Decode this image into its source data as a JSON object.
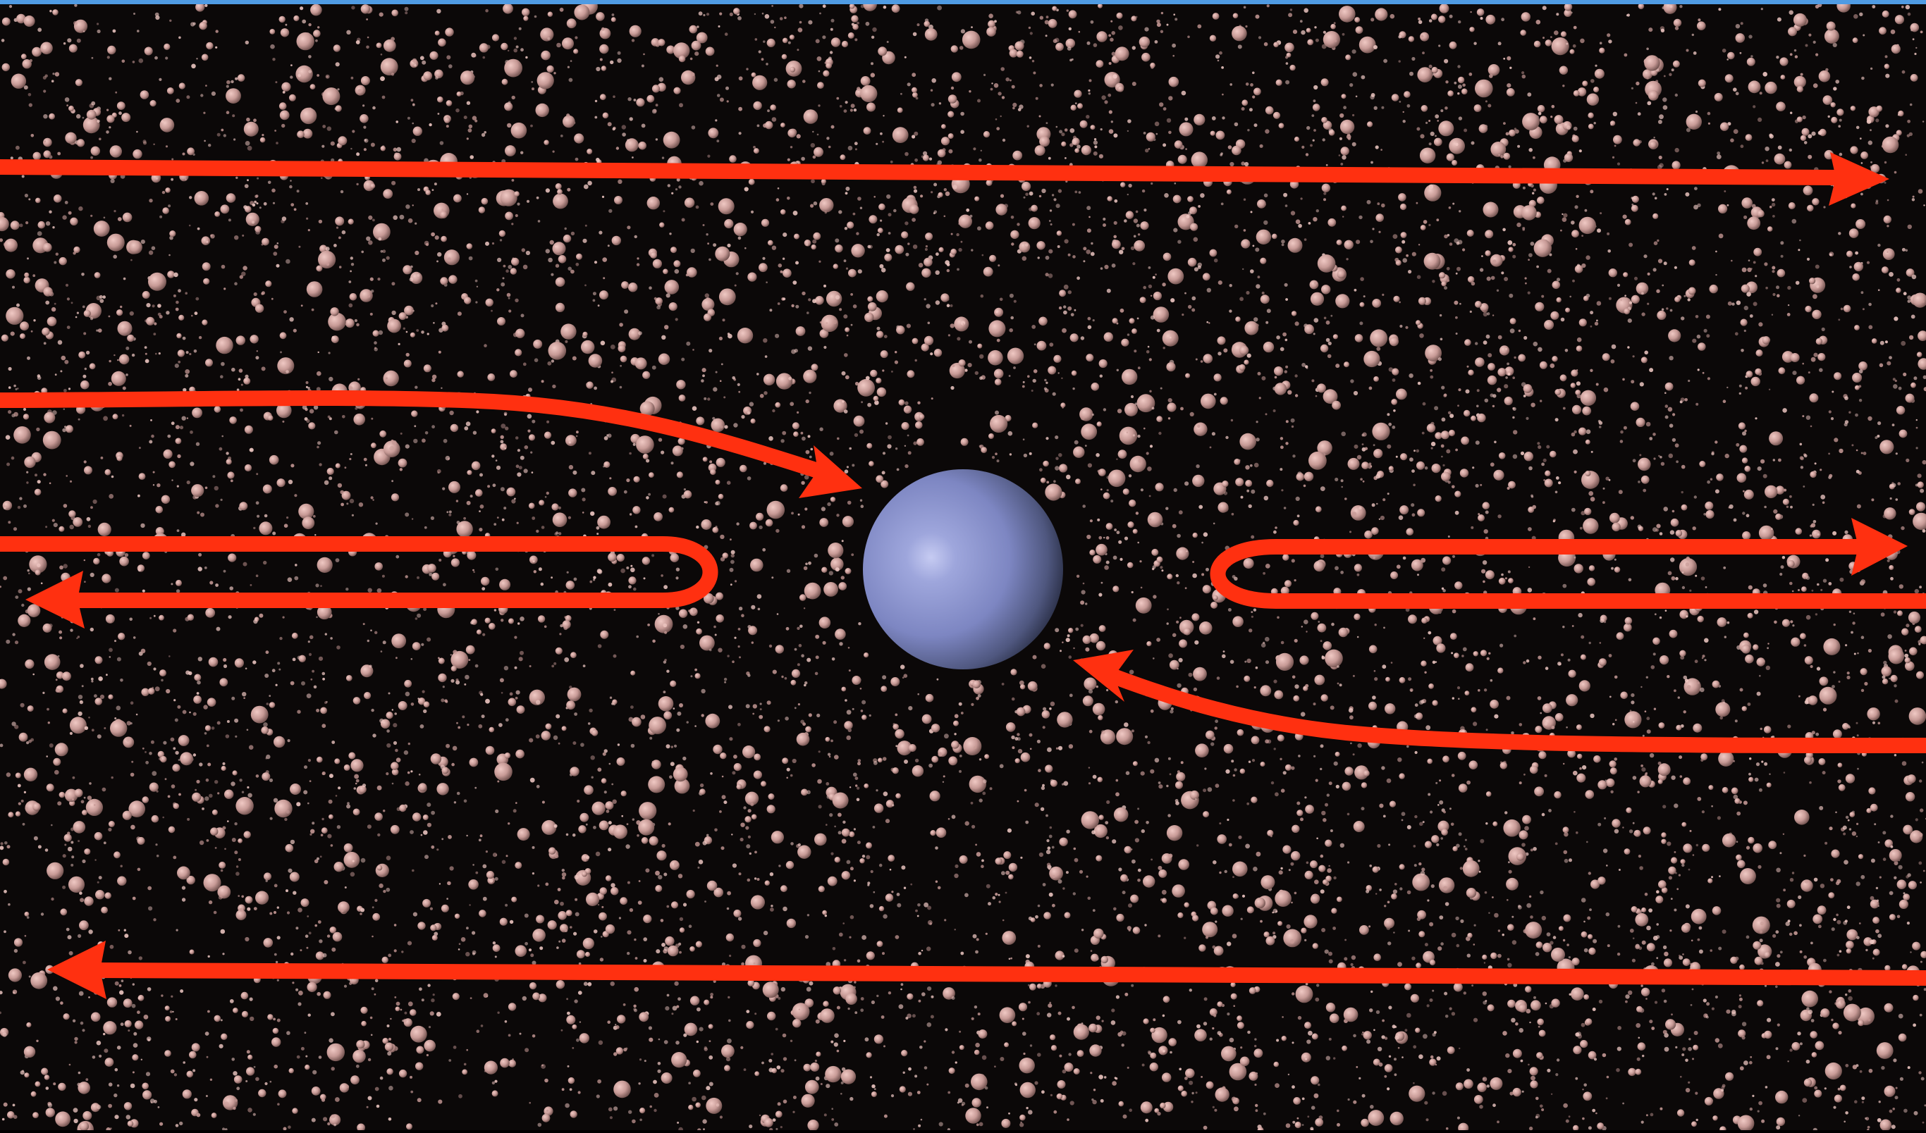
{
  "colors": {
    "background": "#0b0808",
    "top_border": "#4f9be3",
    "particle_base": "#c79a96",
    "particle_highlight": "#f0c9c4",
    "sphere_base": "#7d86c2",
    "sphere_highlight": "#c6cbf2",
    "sphere_shadow": "#2c3149",
    "flow_arrow": "#ff3010"
  },
  "elements": {
    "sphere": "central-sphere",
    "medium": "particle-medium",
    "arrows": [
      "flow-arrow-top-right",
      "flow-arrow-incoming-left",
      "flow-arrow-loop-left",
      "flow-arrow-loop-right",
      "flow-arrow-incoming-right",
      "flow-arrow-bottom-left"
    ]
  }
}
